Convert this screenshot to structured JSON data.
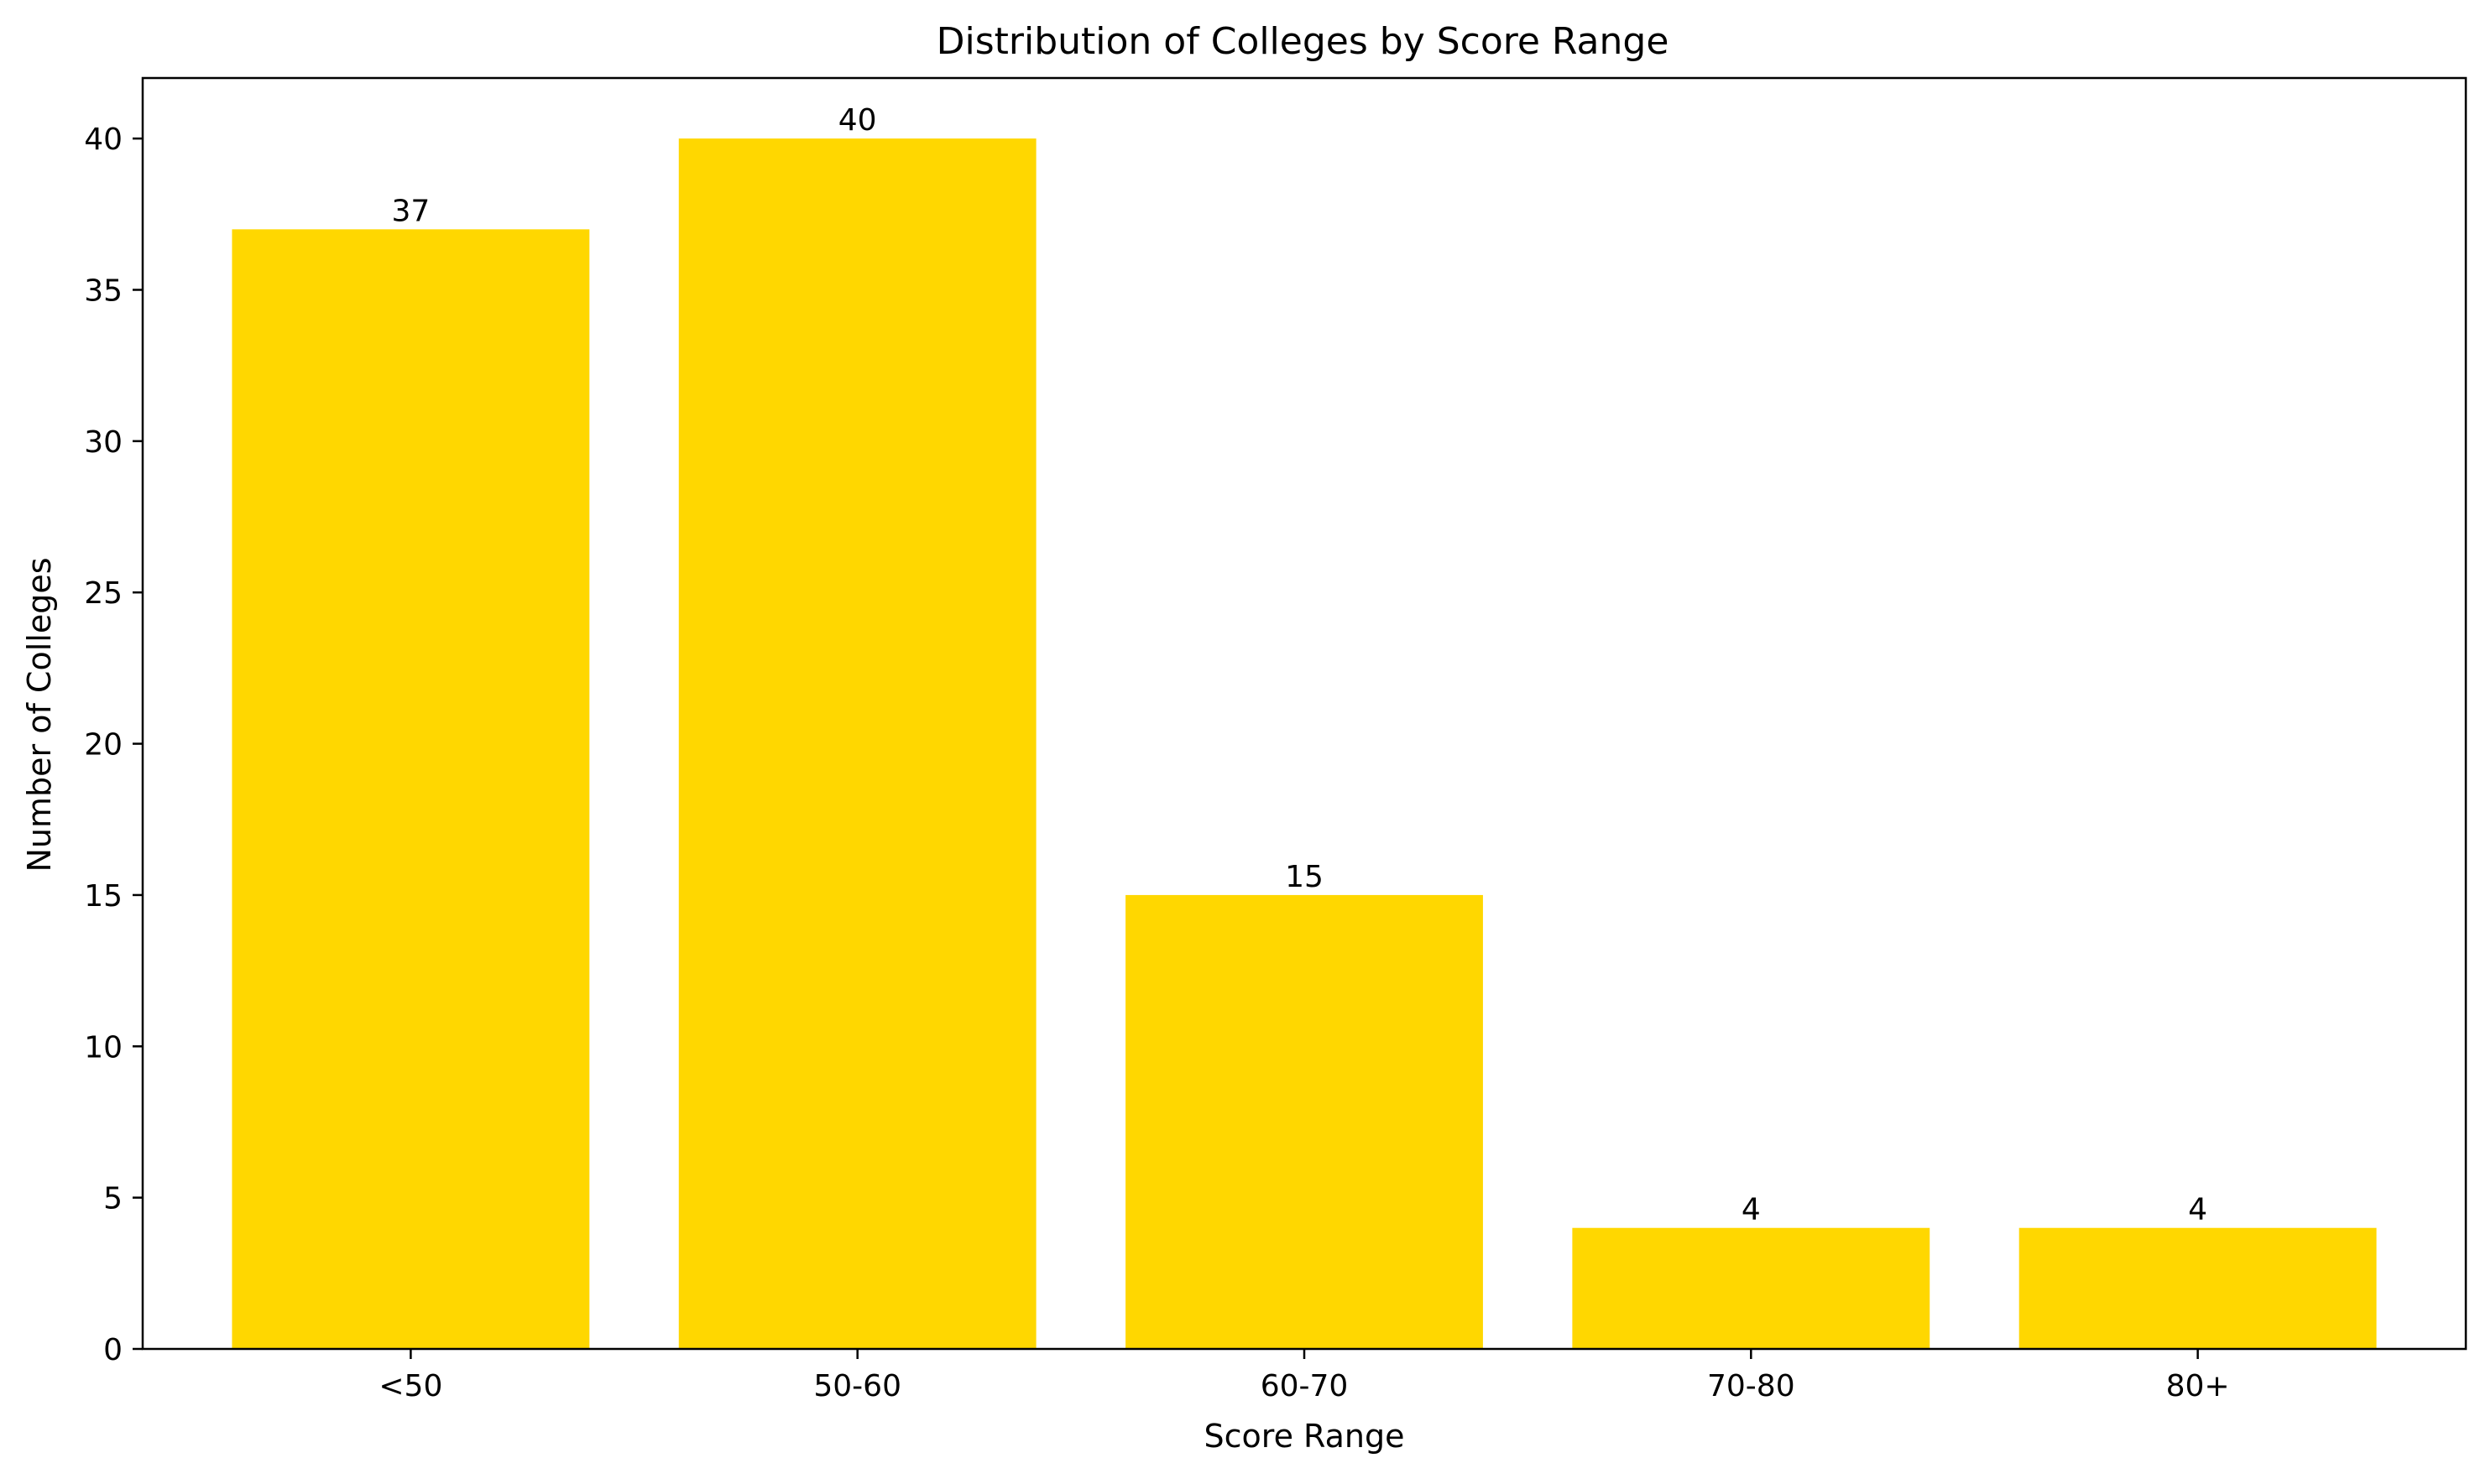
{
  "chart_data": {
    "type": "bar",
    "title": "Distribution of Colleges by Score Range",
    "xlabel": "Score Range",
    "ylabel": "Number of Colleges",
    "categories": [
      "<50",
      "50-60",
      "60-70",
      "70-80",
      "80+"
    ],
    "values": [
      37,
      40,
      15,
      4,
      4
    ],
    "data_labels": [
      "37",
      "40",
      "15",
      "4",
      "4"
    ],
    "ylim": [
      0,
      42
    ],
    "yticks": [
      0,
      5,
      10,
      15,
      20,
      25,
      30,
      35,
      40
    ],
    "ytick_labels": [
      "0",
      "5",
      "10",
      "15",
      "20",
      "25",
      "30",
      "35",
      "40"
    ],
    "bar_color": "#FFD700",
    "grid": false,
    "legend": "none"
  }
}
